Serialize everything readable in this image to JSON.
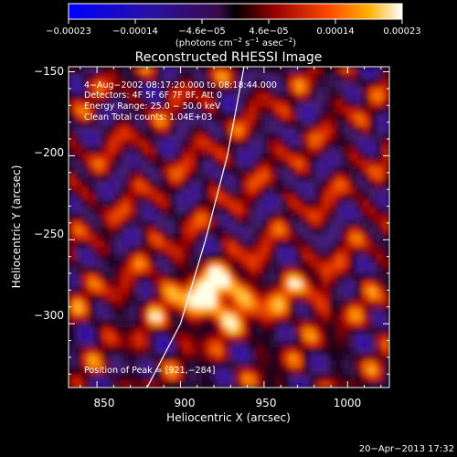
{
  "colorbar": {
    "tick_labels": [
      "−0.00023",
      "−0.00014",
      "−4.6e−05",
      "4.6e−05",
      "0.00014",
      "0.00023"
    ],
    "units_base": "(photons cm",
    "units_exp1": "−2",
    "units_mid": " s",
    "units_exp2": "−1",
    "units_end": " asec",
    "units_exp3": "−2",
    "units_close": ")"
  },
  "chart_data": {
    "type": "heatmap",
    "title": "Reconstructed RHESSI Image",
    "xlabel": "Heliocentric X (arcsec)",
    "ylabel": "Heliocentric Y (arcsec)",
    "xlim": [
      833,
      1025
    ],
    "ylim": [
      -338,
      -147
    ],
    "x_ticks": [
      850,
      900,
      950,
      1000
    ],
    "y_ticks": [
      -150,
      -200,
      -250,
      -300
    ],
    "x_tick_labels": [
      "850",
      "900",
      "950",
      "1000"
    ],
    "y_tick_labels": [
      "−150",
      "−200",
      "−250",
      "−300"
    ],
    "value_range": [
      -0.00023,
      0.00023
    ],
    "peak": [
      921,
      -284
    ],
    "annotations": [
      "4−Aug−2002 08:17:20.000 to 08:18:44.000",
      "Detectors: 4F 5F 6F 7F 8F, Att 0",
      "Energy Range: 25.0 − 50.0 keV",
      "Clean     Total counts: 1.04E+03"
    ],
    "peak_label": "Position of Peak = [921,−284]",
    "limb_curve": [
      [
        880,
        -338
      ],
      [
        900,
        -300
      ],
      [
        915,
        -250
      ],
      [
        928,
        -200
      ],
      [
        938,
        -147
      ]
    ]
  },
  "footer": {
    "timestamp": "20−Apr−2013 17:32"
  }
}
